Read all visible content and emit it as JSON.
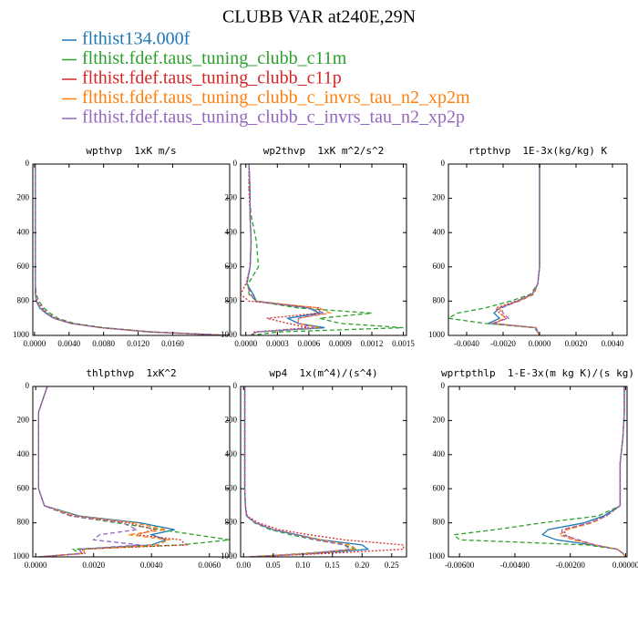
{
  "title": "CLUBB VAR at240E,29N",
  "legend": [
    {
      "name": "flthist134.000f",
      "color": "#1f77b4",
      "style": "solid"
    },
    {
      "name": "flthist.fdef.taus_tuning_clubb_c11m",
      "color": "#2ca02c",
      "style": "dashed"
    },
    {
      "name": "flthist.fdef.taus_tuning_clubb_c11p",
      "color": "#d62728",
      "style": "dotted"
    },
    {
      "name": "flthist.fdef.taus_tuning_clubb_c_invrs_tau_n2_xp2m",
      "color": "#ff7f0e",
      "style": "dashed"
    },
    {
      "name": "flthist.fdef.taus_tuning_clubb_c_invrs_tau_n2_xp2p",
      "color": "#9467bd",
      "style": "dashed"
    }
  ],
  "chart_data": [
    {
      "type": "line",
      "title": "wpthvp  1xK m/s",
      "y": [
        0,
        150,
        300,
        450,
        600,
        700,
        760,
        800,
        840,
        870,
        900,
        930,
        955,
        980,
        1000
      ],
      "ylim": [
        0,
        1000
      ],
      "yinvert": true,
      "yticks": [
        0,
        200,
        400,
        600,
        800,
        1000
      ],
      "xlim": [
        -0.0002,
        0.0226
      ],
      "xticks": [
        {
          "value": 0,
          "label": "0.0000"
        },
        {
          "value": 0.004,
          "label": "0.0040"
        },
        {
          "value": 0.008,
          "label": "0.0080"
        },
        {
          "value": 0.012,
          "label": "0.0120"
        },
        {
          "value": 0.016,
          "label": "0.0160"
        }
      ],
      "series": [
        {
          "values": [
            0.0001,
            0.0001,
            0.0001,
            0.0001,
            0.0001,
            0.0001,
            0.0001,
            0.0002,
            0.0006,
            0.0013,
            0.0022,
            0.0042,
            0.0078,
            0.0135,
            0.0226
          ]
        },
        {
          "values": [
            0.0001,
            0.0001,
            0.0001,
            0.0001,
            0.0001,
            0.0001,
            0.0002,
            0.0005,
            0.0011,
            0.0018,
            0.0027,
            0.0046,
            0.008,
            0.0138,
            0.0226
          ]
        },
        {
          "values": [
            0.0001,
            0.0001,
            0.0001,
            0.0001,
            0.0001,
            0.0001,
            0.0001,
            0.0003,
            0.0009,
            0.0015,
            0.0024,
            0.0043,
            0.0076,
            0.0133,
            0.0226
          ]
        },
        {
          "values": [
            0.0001,
            0.0001,
            0.0001,
            0.0001,
            0.0001,
            0.0001,
            0.0001,
            0.0002,
            0.0007,
            0.0014,
            0.0023,
            0.0043,
            0.0077,
            0.0134,
            0.0226
          ]
        },
        {
          "values": [
            0.0001,
            0.0001,
            0.0001,
            0.0001,
            0.0001,
            0.0001,
            0.0001,
            0.0002,
            0.0008,
            0.0014,
            0.0023,
            0.0043,
            0.0077,
            0.0134,
            0.0226
          ]
        }
      ]
    },
    {
      "type": "line",
      "title": "wp2thvp  1xK m^2/s^2",
      "y": [
        0,
        150,
        300,
        450,
        600,
        700,
        760,
        800,
        840,
        870,
        900,
        930,
        955,
        980,
        1000
      ],
      "ylim": [
        0,
        1000
      ],
      "yinvert": true,
      "yticks": [
        0,
        200,
        400,
        600,
        800,
        1000
      ],
      "xlim": [
        -5e-05,
        0.00153
      ],
      "xticks": [
        {
          "value": 0,
          "label": "0.0000"
        },
        {
          "value": 0.0003,
          "label": "0.0003"
        },
        {
          "value": 0.0006,
          "label": "0.0006"
        },
        {
          "value": 0.0009,
          "label": "0.0009"
        },
        {
          "value": 0.0012,
          "label": "0.0012"
        },
        {
          "value": 0.0015,
          "label": "0.0015"
        }
      ],
      "series": [
        {
          "values": [
            3e-05,
            4e-05,
            4e-05,
            5e-05,
            4e-05,
            1e-05,
            7e-05,
            0.0001,
            0.0006,
            0.0007,
            0.0004,
            0.0005,
            0.00075,
            0.0001,
            5e-05
          ]
        },
        {
          "values": [
            3e-05,
            3e-05,
            5e-05,
            0.0001,
            0.00012,
            2e-05,
            3e-05,
            0.0001,
            0.0005,
            0.0012,
            0.0007,
            0.0009,
            0.0015,
            0.0003,
            5e-05
          ]
        },
        {
          "values": [
            3e-05,
            3e-05,
            4e-05,
            5e-05,
            4e-05,
            0,
            -5e-05,
            3e-05,
            0.0007,
            0.0007,
            0.0002,
            0.0004,
            0.0006,
            8e-05,
            5e-05
          ]
        },
        {
          "values": [
            3e-05,
            4e-05,
            4e-05,
            5e-05,
            4e-05,
            1e-05,
            4e-05,
            0.0001,
            0.0007,
            0.0008,
            0.0005,
            0.0005,
            0.0007,
            0.0001,
            5e-05
          ]
        },
        {
          "values": [
            3e-05,
            4e-05,
            4e-05,
            5e-05,
            4e-05,
            1e-05,
            5e-05,
            9e-05,
            0.0006,
            0.00075,
            0.0005,
            0.0005,
            0.00065,
            0.0001,
            5e-05
          ]
        }
      ]
    },
    {
      "type": "line",
      "title": "rtpthvp  1E-3x(kg/kg) K",
      "y": [
        0,
        150,
        300,
        450,
        600,
        700,
        760,
        800,
        840,
        870,
        900,
        930,
        955,
        980,
        1000
      ],
      "ylim": [
        0,
        1000
      ],
      "yinvert": true,
      "yticks": [
        0,
        200,
        400,
        600,
        800,
        1000
      ],
      "xlim": [
        -0.005,
        0.0048
      ],
      "xticks": [
        {
          "value": -0.004,
          "label": "-0.0040"
        },
        {
          "value": -0.002,
          "label": "-0.0020"
        },
        {
          "value": 0,
          "label": "0.0000"
        },
        {
          "value": 0.002,
          "label": "0.0020"
        },
        {
          "value": 0.004,
          "label": "0.0040"
        }
      ],
      "series": [
        {
          "values": [
            0,
            0,
            0,
            0,
            0,
            -0.0001,
            -0.0004,
            -0.0012,
            -0.0022,
            -0.0025,
            -0.0022,
            -0.0028,
            -0.0002,
            -0.0001,
            0
          ]
        },
        {
          "values": [
            0,
            0,
            0,
            0,
            0,
            -0.0001,
            -0.0005,
            -0.0016,
            -0.003,
            -0.0045,
            -0.005,
            -0.003,
            -0.0003,
            -0.0001,
            0
          ]
        },
        {
          "values": [
            0,
            0,
            0,
            0,
            0,
            -0.0001,
            -0.0004,
            -0.0013,
            -0.0024,
            -0.0022,
            -0.0018,
            -0.0025,
            -0.0002,
            -0.0001,
            0
          ]
        },
        {
          "values": [
            0,
            0,
            0,
            0,
            0,
            -0.0001,
            -0.0003,
            -0.0011,
            -0.0022,
            -0.0021,
            -0.0019,
            -0.0026,
            -0.0002,
            -0.0001,
            0
          ]
        },
        {
          "values": [
            0,
            0,
            0,
            0,
            0,
            -0.0001,
            -0.0004,
            -0.0012,
            -0.0021,
            -0.002,
            -0.0017,
            -0.0026,
            -0.0002,
            -0.0001,
            0
          ]
        }
      ]
    },
    {
      "type": "line",
      "title": "thlpthvp  1xK^2",
      "y": [
        0,
        150,
        300,
        450,
        600,
        700,
        760,
        800,
        840,
        870,
        900,
        930,
        955,
        980,
        1000
      ],
      "ylim": [
        0,
        1000
      ],
      "yinvert": true,
      "yticks": [
        0,
        200,
        400,
        600,
        800,
        1000
      ],
      "xlim": [
        -0.0001,
        0.0067
      ],
      "xticks": [
        {
          "value": 0,
          "label": "0.0000"
        },
        {
          "value": 0.002,
          "label": "0.0020"
        },
        {
          "value": 0.004,
          "label": "0.0040"
        },
        {
          "value": 0.006,
          "label": "0.0060"
        }
      ],
      "series": [
        {
          "values": [
            0.0004,
            0.0001,
            0.0001,
            0.0001,
            0.0001,
            0.0003,
            0.0015,
            0.0036,
            0.0048,
            0.004,
            0.0045,
            0.004,
            0.0015,
            0.0016,
            0.0001
          ]
        },
        {
          "values": [
            0.0004,
            0.0001,
            0.0001,
            0.0001,
            0.0001,
            0.0003,
            0.0012,
            0.0028,
            0.0043,
            0.0055,
            0.0067,
            0.005,
            0.0013,
            0.0015,
            0.0001
          ]
        },
        {
          "values": [
            0.0004,
            0.0001,
            0.0001,
            0.0001,
            0.0001,
            0.0003,
            0.0013,
            0.0032,
            0.0041,
            0.0035,
            0.005,
            0.0052,
            0.0016,
            0.0017,
            0.0001
          ]
        },
        {
          "values": [
            0.0004,
            0.0001,
            0.0001,
            0.0001,
            0.0001,
            0.0003,
            0.0014,
            0.0034,
            0.0045,
            0.0032,
            0.0046,
            0.0042,
            0.0017,
            0.0016,
            0.0001
          ]
        },
        {
          "values": [
            0.0004,
            0.0001,
            0.0001,
            0.0001,
            0.0001,
            0.0003,
            0.0012,
            0.003,
            0.0035,
            0.0022,
            0.002,
            0.0036,
            0.0015,
            0.0016,
            0.0001
          ]
        }
      ]
    },
    {
      "type": "line",
      "title": "wp4  1x(m^4)/(s^4)",
      "y": [
        0,
        150,
        300,
        450,
        600,
        700,
        760,
        800,
        840,
        870,
        900,
        930,
        955,
        980,
        1000
      ],
      "ylim": [
        0,
        1000
      ],
      "yinvert": true,
      "yticks": [
        0,
        200,
        400,
        600,
        800,
        1000
      ],
      "xlim": [
        -0.005,
        0.275
      ],
      "xticks": [
        {
          "value": 0,
          "label": "0.00"
        },
        {
          "value": 0.05,
          "label": "0.05"
        },
        {
          "value": 0.1,
          "label": "0.10"
        },
        {
          "value": 0.15,
          "label": "0.15"
        },
        {
          "value": 0.2,
          "label": "0.20"
        },
        {
          "value": 0.25,
          "label": "0.25"
        }
      ],
      "series": [
        {
          "values": [
            0.002,
            0.002,
            0.002,
            0.002,
            0.002,
            0.003,
            0.005,
            0.02,
            0.05,
            0.09,
            0.13,
            0.2,
            0.21,
            0.12,
            0.01
          ]
        },
        {
          "values": [
            0.002,
            0.002,
            0.002,
            0.002,
            0.002,
            0.003,
            0.005,
            0.018,
            0.045,
            0.08,
            0.12,
            0.17,
            0.19,
            0.1,
            0.01
          ]
        },
        {
          "values": [
            0.002,
            0.002,
            0.002,
            0.002,
            0.002,
            0.003,
            0.006,
            0.025,
            0.06,
            0.11,
            0.17,
            0.27,
            0.27,
            0.14,
            0.01
          ]
        },
        {
          "values": [
            0.002,
            0.002,
            0.002,
            0.002,
            0.002,
            0.003,
            0.005,
            0.02,
            0.05,
            0.09,
            0.13,
            0.18,
            0.19,
            0.11,
            0.01
          ]
        },
        {
          "values": [
            0.002,
            0.002,
            0.002,
            0.002,
            0.002,
            0.003,
            0.005,
            0.02,
            0.05,
            0.09,
            0.12,
            0.17,
            0.18,
            0.11,
            0.01
          ]
        }
      ]
    },
    {
      "type": "line",
      "title": "wprtpthlp  1-E-3x(m kg K)/(s kg)",
      "y": [
        0,
        150,
        300,
        450,
        600,
        700,
        760,
        800,
        840,
        870,
        900,
        930,
        955,
        980,
        1000
      ],
      "ylim": [
        0,
        1000
      ],
      "yinvert": true,
      "yticks": [
        0,
        200,
        400,
        600,
        800,
        1000
      ],
      "xlim": [
        -0.0064,
        5e-05
      ],
      "xticks": [
        {
          "value": -0.006,
          "label": "-0.00600"
        },
        {
          "value": -0.004,
          "label": "-0.00400"
        },
        {
          "value": -0.002,
          "label": "-0.00200"
        },
        {
          "value": 0,
          "label": "0.00000"
        }
      ],
      "series": [
        {
          "values": [
            -5e-05,
            -5e-05,
            -0.0001,
            -0.0002,
            -0.0002,
            -0.0002,
            -0.0008,
            -0.0015,
            -0.0028,
            -0.003,
            -0.0025,
            -0.0012,
            -0.0003,
            -0.0001,
            0
          ]
        },
        {
          "values": [
            -5e-05,
            -5e-05,
            -0.0001,
            -0.0002,
            -0.0002,
            -0.0002,
            -0.001,
            -0.003,
            -0.0047,
            -0.0062,
            -0.006,
            -0.0014,
            -0.0003,
            -0.0001,
            0
          ]
        },
        {
          "values": [
            -5e-05,
            -5e-05,
            -0.0001,
            -0.0002,
            -0.0002,
            -0.0002,
            -0.0007,
            -0.0013,
            -0.0022,
            -0.0022,
            -0.0018,
            -0.0011,
            -0.0003,
            -0.0001,
            0
          ]
        },
        {
          "values": [
            -5e-05,
            -5e-05,
            -0.0001,
            -0.0002,
            -0.0002,
            -0.0002,
            -0.0007,
            -0.0012,
            -0.0021,
            -0.0024,
            -0.0019,
            -0.0011,
            -0.0003,
            -0.0001,
            0
          ]
        },
        {
          "values": [
            -5e-05,
            -5e-05,
            -0.0001,
            -0.0002,
            -0.0002,
            -0.0002,
            -0.0007,
            -0.0013,
            -0.0023,
            -0.0023,
            -0.0017,
            -0.0011,
            -0.0003,
            -0.0001,
            0
          ]
        }
      ]
    }
  ]
}
